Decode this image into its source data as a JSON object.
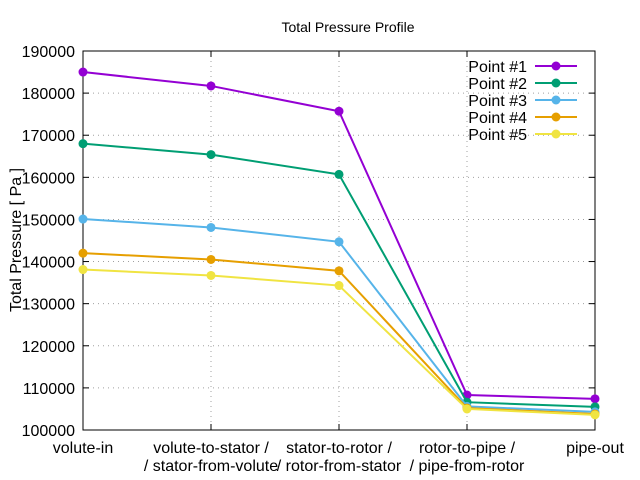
{
  "chart_data": {
    "type": "line",
    "title": "Total Pressure Profile",
    "xlabel": "",
    "ylabel": "Total Pressure [ Pa ]",
    "ylim": [
      100000,
      190000
    ],
    "yticks": [
      "100000",
      "110000",
      "120000",
      "130000",
      "140000",
      "150000",
      "160000",
      "170000",
      "180000",
      "190000"
    ],
    "ytick_values": [
      100000,
      110000,
      120000,
      130000,
      140000,
      150000,
      160000,
      170000,
      180000,
      190000
    ],
    "categories": [
      [
        "volute-in"
      ],
      [
        "volute-to-stator /",
        "/ stator-from-volute"
      ],
      [
        "stator-to-rotor /",
        "/ rotor-from-stator"
      ],
      [
        "rotor-to-pipe /",
        "/ pipe-from-rotor"
      ],
      [
        "pipe-out"
      ]
    ],
    "grid": true,
    "legend_position": "top-right",
    "series": [
      {
        "name": "Point #1",
        "color": "#9400d3",
        "values": [
          185000,
          181700,
          175700,
          108300,
          107400
        ]
      },
      {
        "name": "Point #2",
        "color": "#009e73",
        "values": [
          168000,
          165400,
          160700,
          106600,
          105500
        ]
      },
      {
        "name": "Point #3",
        "color": "#56b4e9",
        "values": [
          150100,
          148100,
          144700,
          105600,
          104300
        ]
      },
      {
        "name": "Point #4",
        "color": "#e69f00",
        "values": [
          142000,
          140500,
          137800,
          105200,
          103800
        ]
      },
      {
        "name": "Point #5",
        "color": "#f0e442",
        "values": [
          138100,
          136700,
          134300,
          105000,
          103600
        ]
      }
    ]
  }
}
